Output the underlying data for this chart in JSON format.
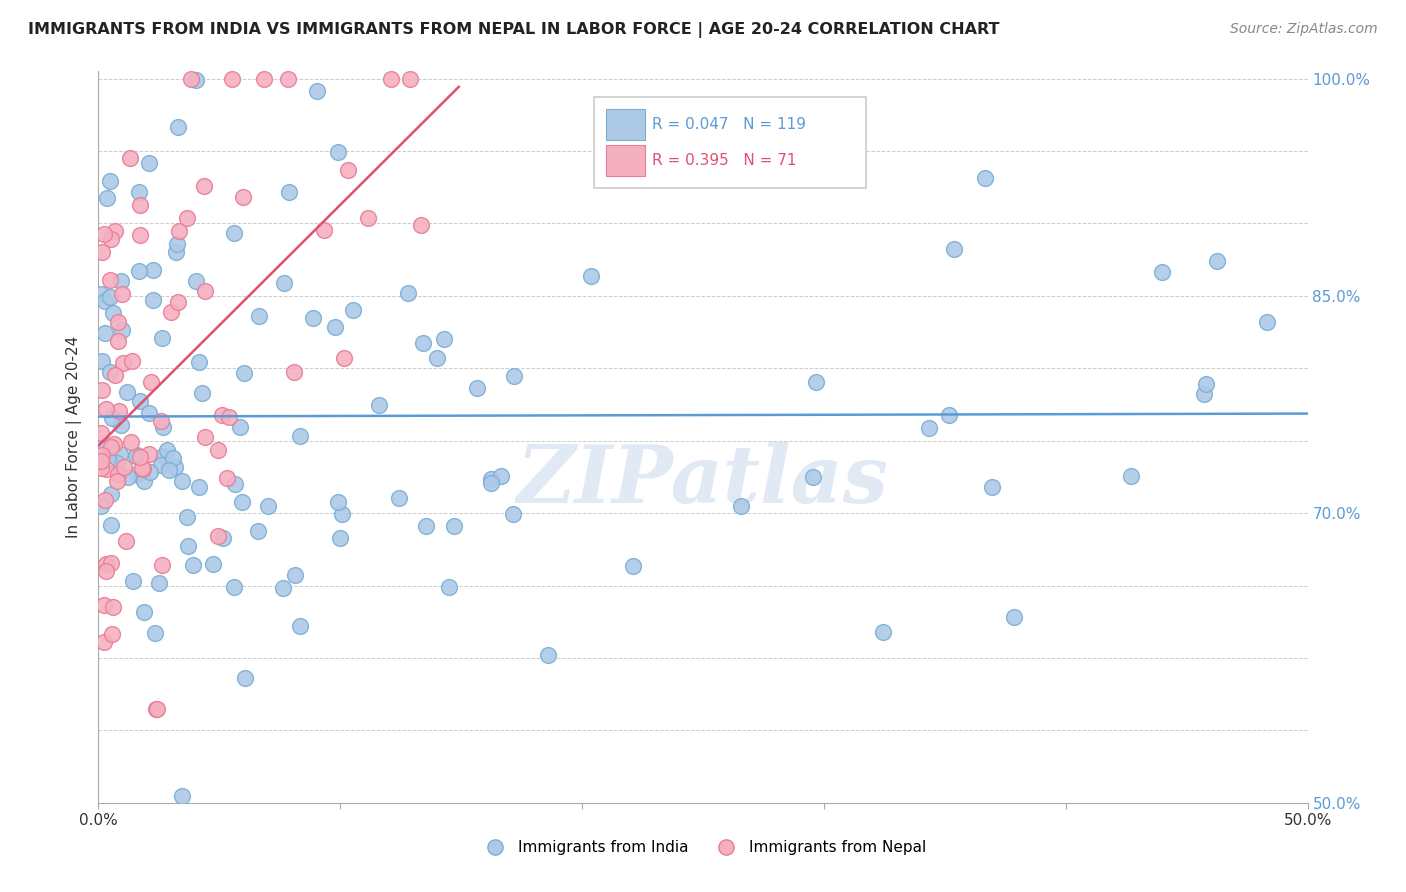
{
  "title": "IMMIGRANTS FROM INDIA VS IMMIGRANTS FROM NEPAL IN LABOR FORCE | AGE 20-24 CORRELATION CHART",
  "source_text": "Source: ZipAtlas.com",
  "ylabel": "In Labor Force | Age 20-24",
  "xlim": [
    0.0,
    0.5
  ],
  "ylim": [
    0.5,
    1.005
  ],
  "xticks": [
    0.0,
    0.1,
    0.2,
    0.3,
    0.4,
    0.5
  ],
  "xticklabels": [
    "0.0%",
    "",
    "",
    "",
    "",
    "50.0%"
  ],
  "yticks": [
    0.5,
    0.55,
    0.6,
    0.65,
    0.7,
    0.75,
    0.8,
    0.85,
    0.9,
    0.95,
    1.0
  ],
  "yticklabels_right": [
    "50.0%",
    "",
    "",
    "",
    "70.0%",
    "",
    "",
    "85.0%",
    "",
    "",
    "100.0%"
  ],
  "india_color": "#adc9e8",
  "india_edge_color": "#7aafd4",
  "nepal_color": "#f5b0c0",
  "nepal_edge_color": "#e87d94",
  "india_R": 0.047,
  "india_N": 119,
  "nepal_R": 0.395,
  "nepal_N": 71,
  "india_line_color": "#5b9bd5",
  "nepal_line_color": "#e05070",
  "watermark": "ZIPatlas",
  "background_color": "#ffffff",
  "grid_color": "#cccccc",
  "tick_color": "#5b9bd5",
  "legend_border_color": "#cccccc",
  "india_legend_color": "#adc9e8",
  "nepal_legend_color": "#f5b0c0"
}
